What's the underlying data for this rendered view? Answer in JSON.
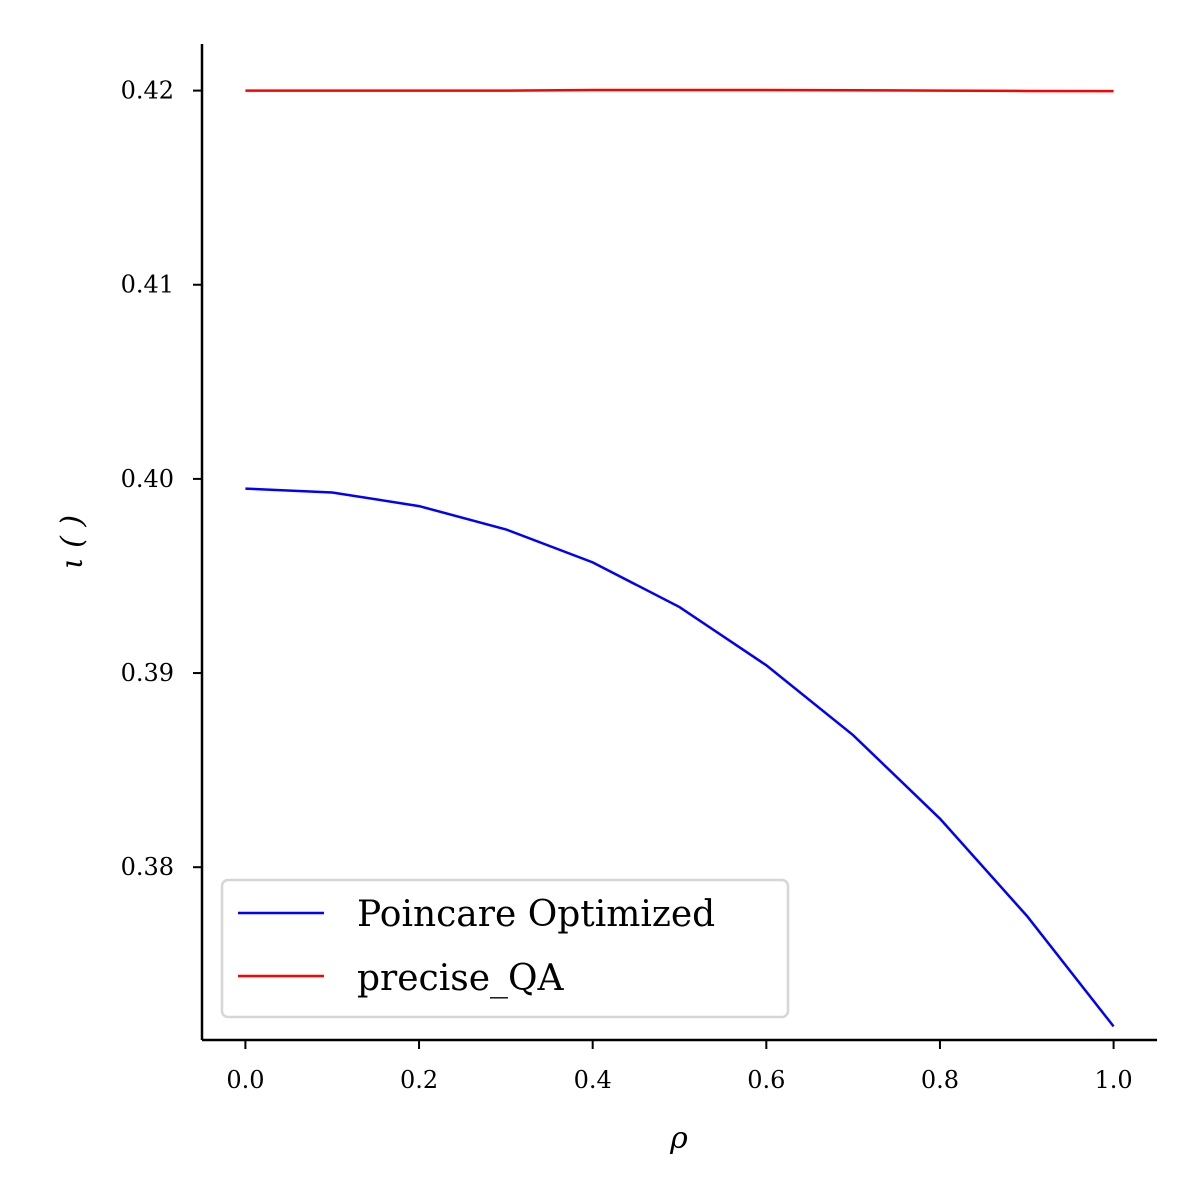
{
  "chart_data": {
    "type": "line",
    "title": "",
    "xlabel": "ρ",
    "ylabel": "ι ( )",
    "xlim": [
      -0.05,
      1.05
    ],
    "ylim": [
      0.3711,
      0.4224
    ],
    "xticks": [
      0.0,
      0.2,
      0.4,
      0.6,
      0.8,
      1.0
    ],
    "xtick_labels": [
      "0.0",
      "0.2",
      "0.4",
      "0.6",
      "0.8",
      "1.0"
    ],
    "yticks": [
      0.38,
      0.39,
      0.4,
      0.41,
      0.42
    ],
    "ytick_labels": [
      "0.38",
      "0.39",
      "0.40",
      "0.41",
      "0.42"
    ],
    "grid": false,
    "legend_placement": "lower-left",
    "series": [
      {
        "name": "Poincare Optimized",
        "color": "#0000ff",
        "x": [
          0.0,
          0.1,
          0.2,
          0.3,
          0.4,
          0.5,
          0.6,
          0.7,
          0.8,
          0.9,
          1.0
        ],
        "y": [
          0.3995,
          0.3993,
          0.3986,
          0.3974,
          0.3957,
          0.3934,
          0.3904,
          0.3868,
          0.3825,
          0.3775,
          0.3718
        ]
      },
      {
        "name": "precise_QA",
        "color": "#ff0000",
        "x": [
          0.0,
          0.1,
          0.2,
          0.3,
          0.4,
          0.5,
          0.6,
          0.7,
          0.8,
          0.9,
          1.0
        ],
        "y": [
          0.42,
          0.42,
          0.42,
          0.42,
          0.42003,
          0.42003,
          0.42003,
          0.42002,
          0.42,
          0.41998,
          0.41997
        ]
      }
    ]
  }
}
